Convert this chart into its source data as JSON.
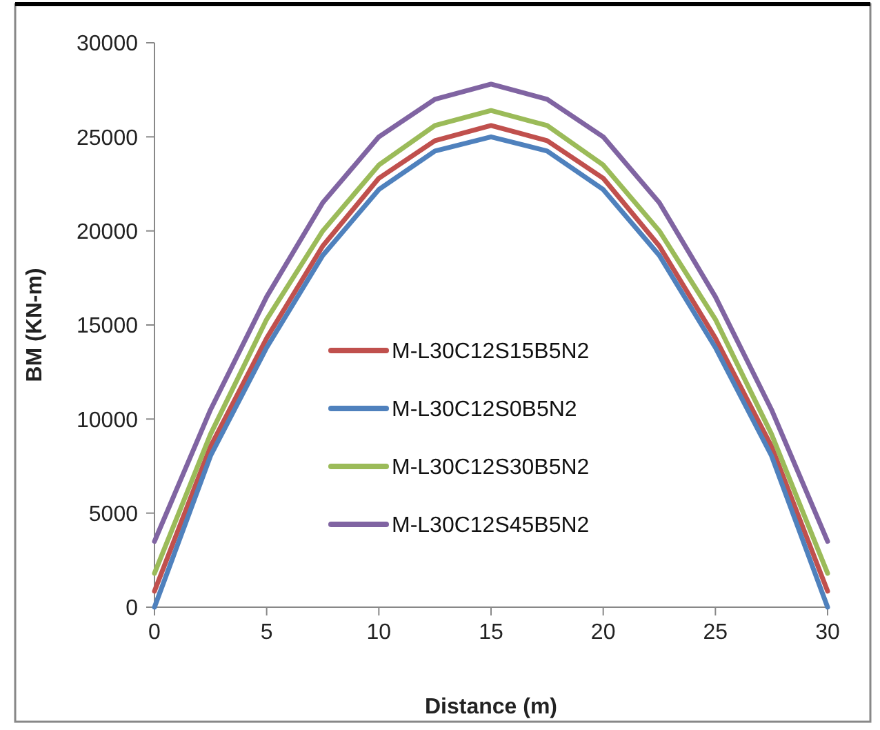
{
  "chart_data": {
    "type": "line",
    "xlabel": "Distance (m)",
    "ylabel": "BM (KN-m)",
    "x": [
      0,
      2.5,
      5,
      7.5,
      10,
      12.5,
      15,
      17.5,
      20,
      22.5,
      25,
      27.5,
      30
    ],
    "series": [
      {
        "name": "M-L30C12S15B5N2",
        "color": "#c0504d",
        "values": [
          850,
          8550,
          14300,
          19200,
          22800,
          24800,
          25600,
          24800,
          22800,
          19200,
          14300,
          8550,
          850
        ]
      },
      {
        "name": "M-L30C12S0B5N2",
        "color": "#4f81bd",
        "values": [
          0,
          8050,
          13800,
          18700,
          22200,
          24250,
          25000,
          24250,
          22200,
          18700,
          13800,
          8050,
          0
        ]
      },
      {
        "name": "M-L30C12S30B5N2",
        "color": "#9bbb59",
        "values": [
          1800,
          9200,
          15300,
          20000,
          23500,
          25600,
          26400,
          25600,
          23500,
          20000,
          15300,
          9200,
          1800
        ]
      },
      {
        "name": "M-L30C12S45B5N2",
        "color": "#8064a2",
        "values": [
          3500,
          10500,
          16500,
          21500,
          25000,
          27000,
          27800,
          27000,
          25000,
          21500,
          16500,
          10500,
          3500
        ]
      }
    ],
    "xlim": [
      0,
      30
    ],
    "xticks": [
      0,
      5,
      10,
      15,
      20,
      25,
      30
    ],
    "ylim": [
      0,
      30000
    ],
    "yticks": [
      0,
      5000,
      10000,
      15000,
      20000,
      25000,
      30000
    ],
    "grid": false,
    "legend": "left",
    "marker": "none",
    "line_style": "solid"
  }
}
